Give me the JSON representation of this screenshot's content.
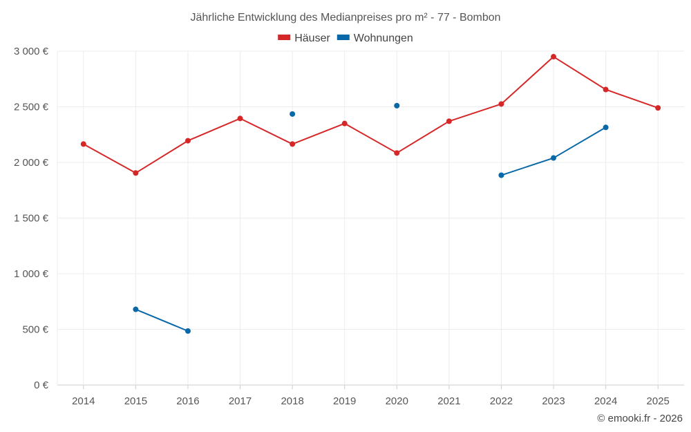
{
  "chart_data": {
    "type": "line",
    "title": "Jährliche Entwicklung des Medianpreises pro m² - 77 - Bombon",
    "categories": [
      "2014",
      "2015",
      "2016",
      "2017",
      "2018",
      "2019",
      "2020",
      "2021",
      "2022",
      "2023",
      "2024",
      "2025"
    ],
    "ylim": [
      0,
      3000
    ],
    "yticks": [
      0,
      500,
      1000,
      1500,
      2000,
      2500,
      3000
    ],
    "ytick_labels": [
      "0 €",
      "500 €",
      "1 000 €",
      "1 500 €",
      "2 000 €",
      "2 500 €",
      "3 000 €"
    ],
    "grid": true,
    "legend_position": "top-center",
    "series": [
      {
        "name": "Häuser",
        "color": "#d62728",
        "values": [
          2165,
          1905,
          2195,
          2395,
          2165,
          2350,
          2085,
          2370,
          2525,
          2950,
          2655,
          2490
        ]
      },
      {
        "name": "Wohnungen",
        "color": "#0868a8",
        "values": [
          null,
          680,
          485,
          null,
          2435,
          null,
          2510,
          null,
          1885,
          2040,
          2315,
          null
        ]
      }
    ]
  },
  "credit": "© emooki.fr - 2026"
}
